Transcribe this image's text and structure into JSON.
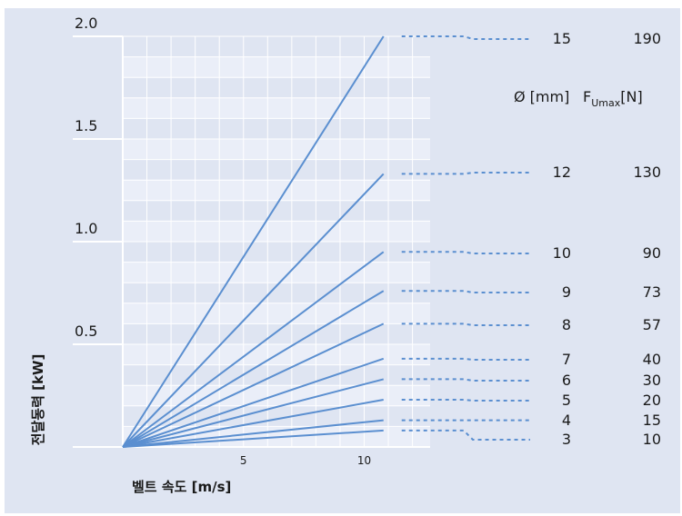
{
  "chart_data": {
    "type": "line",
    "xlabel": "벨트 속도 [m/s]",
    "ylabel": "전달동력 [kW]",
    "xlim": [
      0,
      11
    ],
    "ylim": [
      0,
      2.0
    ],
    "x_ticks": [
      "5",
      "10"
    ],
    "y_ticks": [
      "0.5",
      "1.0",
      "1.5",
      "2.0"
    ],
    "column_headers": {
      "diameter": "Ø [mm]",
      "force_main": "F",
      "force_sub": "Umax",
      "force_unit": "[N]"
    },
    "series": [
      {
        "diameter": "15",
        "force": "190",
        "x": [
          0,
          10.8
        ],
        "y": [
          0,
          2.0
        ]
      },
      {
        "diameter": "12",
        "force": "130",
        "x": [
          0,
          10.8
        ],
        "y": [
          0,
          1.33
        ]
      },
      {
        "diameter": "10",
        "force": "90",
        "x": [
          0,
          10.8
        ],
        "y": [
          0,
          0.95
        ]
      },
      {
        "diameter": "9",
        "force": "73",
        "x": [
          0,
          10.8
        ],
        "y": [
          0,
          0.76
        ]
      },
      {
        "diameter": "8",
        "force": "57",
        "x": [
          0,
          10.8
        ],
        "y": [
          0,
          0.6
        ]
      },
      {
        "diameter": "7",
        "force": "40",
        "x": [
          0,
          10.8
        ],
        "y": [
          0,
          0.43
        ]
      },
      {
        "diameter": "6",
        "force": "30",
        "x": [
          0,
          10.8
        ],
        "y": [
          0,
          0.33
        ]
      },
      {
        "diameter": "5",
        "force": "20",
        "x": [
          0,
          10.8
        ],
        "y": [
          0,
          0.23
        ]
      },
      {
        "diameter": "4",
        "force": "15",
        "x": [
          0,
          10.8
        ],
        "y": [
          0,
          0.13
        ]
      },
      {
        "diameter": "3",
        "force": "10",
        "x": [
          0,
          10.8
        ],
        "y": [
          0,
          0.08
        ]
      }
    ],
    "colors": {
      "line": "#5b8fd0",
      "background": "#dfe5f2",
      "band": "#eaeef8"
    },
    "grid": true
  }
}
